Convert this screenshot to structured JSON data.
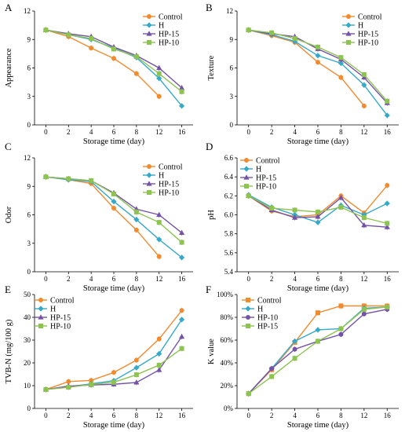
{
  "colors": {
    "orange": "#F28A2E",
    "blue": "#36A9C9",
    "purple": "#7452A6",
    "green": "#8DC350",
    "axis": "#000000"
  },
  "chart_data": [
    {
      "id": "A",
      "type": "line",
      "letter": "A",
      "xlabel": "Storage time (day)",
      "ylabel": "Appearance",
      "categories": [
        "0",
        "2",
        "4",
        "6",
        "8",
        "12",
        "16"
      ],
      "ylim": [
        0,
        12
      ],
      "yticks": [
        "0",
        "3",
        "6",
        "9",
        "12"
      ],
      "legend": "top-right",
      "series": [
        {
          "name": "Control",
          "color": "orange",
          "marker": "circle",
          "values": [
            10,
            9.3,
            8.1,
            7.0,
            5.4,
            3.0,
            null
          ]
        },
        {
          "name": "H",
          "color": "blue",
          "marker": "diamond",
          "values": [
            10,
            9.5,
            9.0,
            8.1,
            7.1,
            4.9,
            2.0
          ]
        },
        {
          "name": "HP-15",
          "color": "purple",
          "marker": "triangle",
          "values": [
            10,
            9.6,
            9.3,
            8.2,
            7.3,
            6.0,
            3.9
          ]
        },
        {
          "name": "HP-10",
          "color": "green",
          "marker": "square",
          "values": [
            10,
            9.5,
            9.1,
            8.0,
            7.2,
            5.4,
            3.5
          ]
        }
      ]
    },
    {
      "id": "B",
      "type": "line",
      "letter": "B",
      "xlabel": "Storage time (day)",
      "ylabel": "Texture",
      "categories": [
        "0",
        "2",
        "4",
        "6",
        "8",
        "12",
        "16"
      ],
      "ylim": [
        0,
        12
      ],
      "yticks": [
        "0",
        "3",
        "6",
        "9",
        "12"
      ],
      "legend": "top-right",
      "series": [
        {
          "name": "Control",
          "color": "orange",
          "marker": "circle",
          "values": [
            10,
            9.4,
            8.7,
            6.6,
            5.0,
            2.0,
            null
          ]
        },
        {
          "name": "H",
          "color": "blue",
          "marker": "diamond",
          "values": [
            10,
            9.5,
            8.8,
            7.3,
            6.5,
            4.2,
            1.0
          ]
        },
        {
          "name": "HP-15",
          "color": "purple",
          "marker": "triangle",
          "values": [
            10,
            9.6,
            9.3,
            8.0,
            6.9,
            5.0,
            2.3
          ]
        },
        {
          "name": "HP-10",
          "color": "green",
          "marker": "square",
          "values": [
            10,
            9.7,
            9.1,
            8.2,
            7.1,
            5.3,
            2.5
          ]
        }
      ]
    },
    {
      "id": "C",
      "type": "line",
      "letter": "C",
      "xlabel": "Storage time (day)",
      "ylabel": "Odor",
      "categories": [
        "0",
        "2",
        "4",
        "6",
        "8",
        "12",
        "16"
      ],
      "ylim": [
        0,
        12
      ],
      "yticks": [
        "0",
        "3",
        "6",
        "9",
        "12"
      ],
      "legend": "top-right",
      "series": [
        {
          "name": "Control",
          "color": "orange",
          "marker": "circle",
          "values": [
            10,
            9.7,
            9.3,
            6.7,
            4.4,
            1.6,
            null
          ]
        },
        {
          "name": "H",
          "color": "blue",
          "marker": "diamond",
          "values": [
            10,
            9.7,
            9.5,
            7.4,
            5.5,
            3.4,
            1.5
          ]
        },
        {
          "name": "HP-15",
          "color": "purple",
          "marker": "triangle",
          "values": [
            10,
            9.8,
            9.6,
            8.3,
            6.6,
            6.0,
            4.1
          ]
        },
        {
          "name": "HP-10",
          "color": "green",
          "marker": "square",
          "values": [
            10,
            9.8,
            9.6,
            8.2,
            6.3,
            5.2,
            3.1
          ]
        }
      ]
    },
    {
      "id": "D",
      "type": "line",
      "letter": "D",
      "xlabel": "Storage time (day)",
      "ylabel": "pH",
      "categories": [
        "0",
        "2",
        "4",
        "6",
        "8",
        "12",
        "16"
      ],
      "ylim": [
        5.4,
        6.6
      ],
      "yticks": [
        "5.4",
        "5.6",
        "5.8",
        "6.0",
        "6.2",
        "6.4",
        "6.6"
      ],
      "legend": "top-left",
      "series": [
        {
          "name": "Control",
          "color": "orange",
          "marker": "circle",
          "values": [
            6.2,
            6.04,
            5.98,
            6.0,
            6.2,
            6.02,
            6.31
          ]
        },
        {
          "name": "H",
          "color": "blue",
          "marker": "diamond",
          "values": [
            6.21,
            6.08,
            6.0,
            5.92,
            6.1,
            6.0,
            6.12
          ]
        },
        {
          "name": "HP-15",
          "color": "purple",
          "marker": "triangle",
          "values": [
            6.2,
            6.05,
            5.97,
            5.98,
            6.18,
            5.89,
            5.87
          ]
        },
        {
          "name": "HP-10",
          "color": "green",
          "marker": "square",
          "values": [
            6.2,
            6.07,
            6.05,
            6.03,
            6.08,
            5.97,
            5.91
          ]
        }
      ]
    },
    {
      "id": "E",
      "type": "line",
      "letter": "E",
      "xlabel": "Storage time (day)",
      "ylabel": "TVB-N (mg/100 g)",
      "categories": [
        "0",
        "2",
        "4",
        "6",
        "8",
        "12",
        "16"
      ],
      "ylim": [
        0,
        50
      ],
      "yticks": [
        "0",
        "10",
        "20",
        "30",
        "40",
        "50"
      ],
      "legend": "top-left",
      "series": [
        {
          "name": "Control",
          "color": "orange",
          "marker": "circle",
          "values": [
            8.3,
            11.8,
            12.3,
            15.8,
            21.2,
            30.5,
            43.0
          ]
        },
        {
          "name": "H",
          "color": "blue",
          "marker": "diamond",
          "values": [
            8.3,
            9.5,
            10.8,
            12.2,
            17.9,
            24.0,
            39.0
          ]
        },
        {
          "name": "HP-15",
          "color": "purple",
          "marker": "triangle",
          "values": [
            8.3,
            9.8,
            10.3,
            10.6,
            11.4,
            16.9,
            31.5
          ]
        },
        {
          "name": "HP-10",
          "color": "green",
          "marker": "square",
          "values": [
            8.3,
            9.3,
            10.5,
            11.5,
            14.8,
            19.0,
            26.3
          ]
        }
      ]
    },
    {
      "id": "F",
      "type": "line",
      "letter": "F",
      "xlabel": "Storage time (day)",
      "ylabel": "K value",
      "categories": [
        "0",
        "2",
        "4",
        "6",
        "8",
        "12",
        "16"
      ],
      "ylim": [
        0,
        100
      ],
      "yticks": [
        "0%",
        "20%",
        "40%",
        "60%",
        "80%",
        "100%"
      ],
      "legend": "top-left",
      "series": [
        {
          "name": "Control",
          "color": "orange",
          "marker": "square",
          "values": [
            13,
            34,
            58,
            84,
            90,
            90,
            90
          ]
        },
        {
          "name": "H",
          "color": "blue",
          "marker": "diamond",
          "values": [
            13,
            35,
            59,
            69,
            70,
            88,
            89
          ]
        },
        {
          "name": "HP-10",
          "color": "purple",
          "marker": "circle",
          "values": [
            13,
            35,
            52,
            59,
            65,
            83,
            87
          ]
        },
        {
          "name": "HP-15",
          "color": "green",
          "marker": "square",
          "values": [
            13,
            28,
            44,
            59,
            70,
            87,
            89
          ]
        }
      ]
    }
  ]
}
